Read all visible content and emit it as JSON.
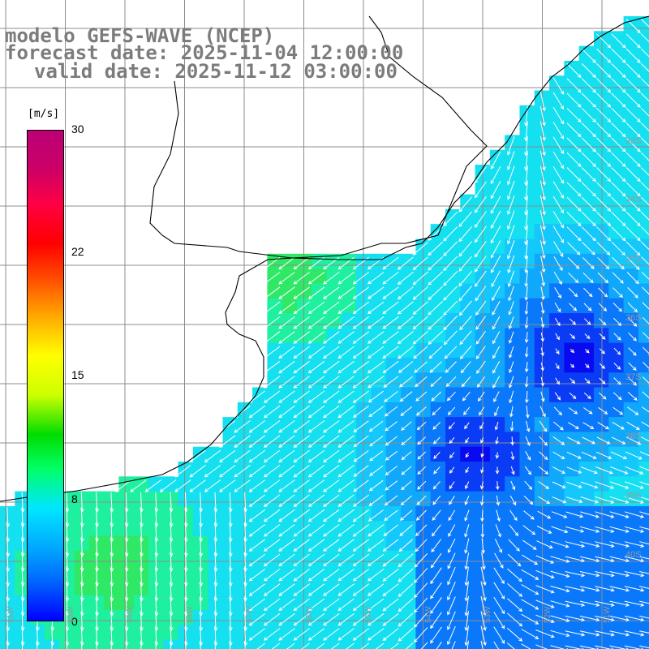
{
  "header": {
    "line1": "modelo GEFS-WAVE (NCEP)",
    "line2": "forecast date: 2025-11-04 12:00:00",
    "line3": "valid date: 2025-11-12 03:00:00"
  },
  "colorbar": {
    "unit": "[m/s]",
    "min": 0,
    "max": 30,
    "ticks": [
      "30",
      "22",
      "15",
      "8",
      "0"
    ],
    "colors": [
      "#0000ff",
      "#0066ff",
      "#00aaff",
      "#00e6ff",
      "#00ff66",
      "#00dd00",
      "#ccff00",
      "#ffff00",
      "#ffaa00",
      "#ff5500",
      "#ff0000",
      "#ff0044",
      "#cc0066",
      "#bb0077"
    ]
  },
  "map": {
    "lat_labels": [
      "33S",
      "34S",
      "35S",
      "36S",
      "37S",
      "38S",
      "39S",
      "40S"
    ],
    "lon_labels": [
      "61W",
      "60W",
      "59W",
      "58W",
      "57W",
      "56W",
      "55W",
      "54W",
      "53W",
      "52W",
      "51W"
    ],
    "field": "wind speed and direction",
    "ocean_colors": [
      "#0a0af0",
      "#0a3cf6",
      "#0a78fa",
      "#10a8fb",
      "#14c8fc",
      "#14e0f0",
      "#1ef0a0",
      "#2ee866"
    ]
  }
}
